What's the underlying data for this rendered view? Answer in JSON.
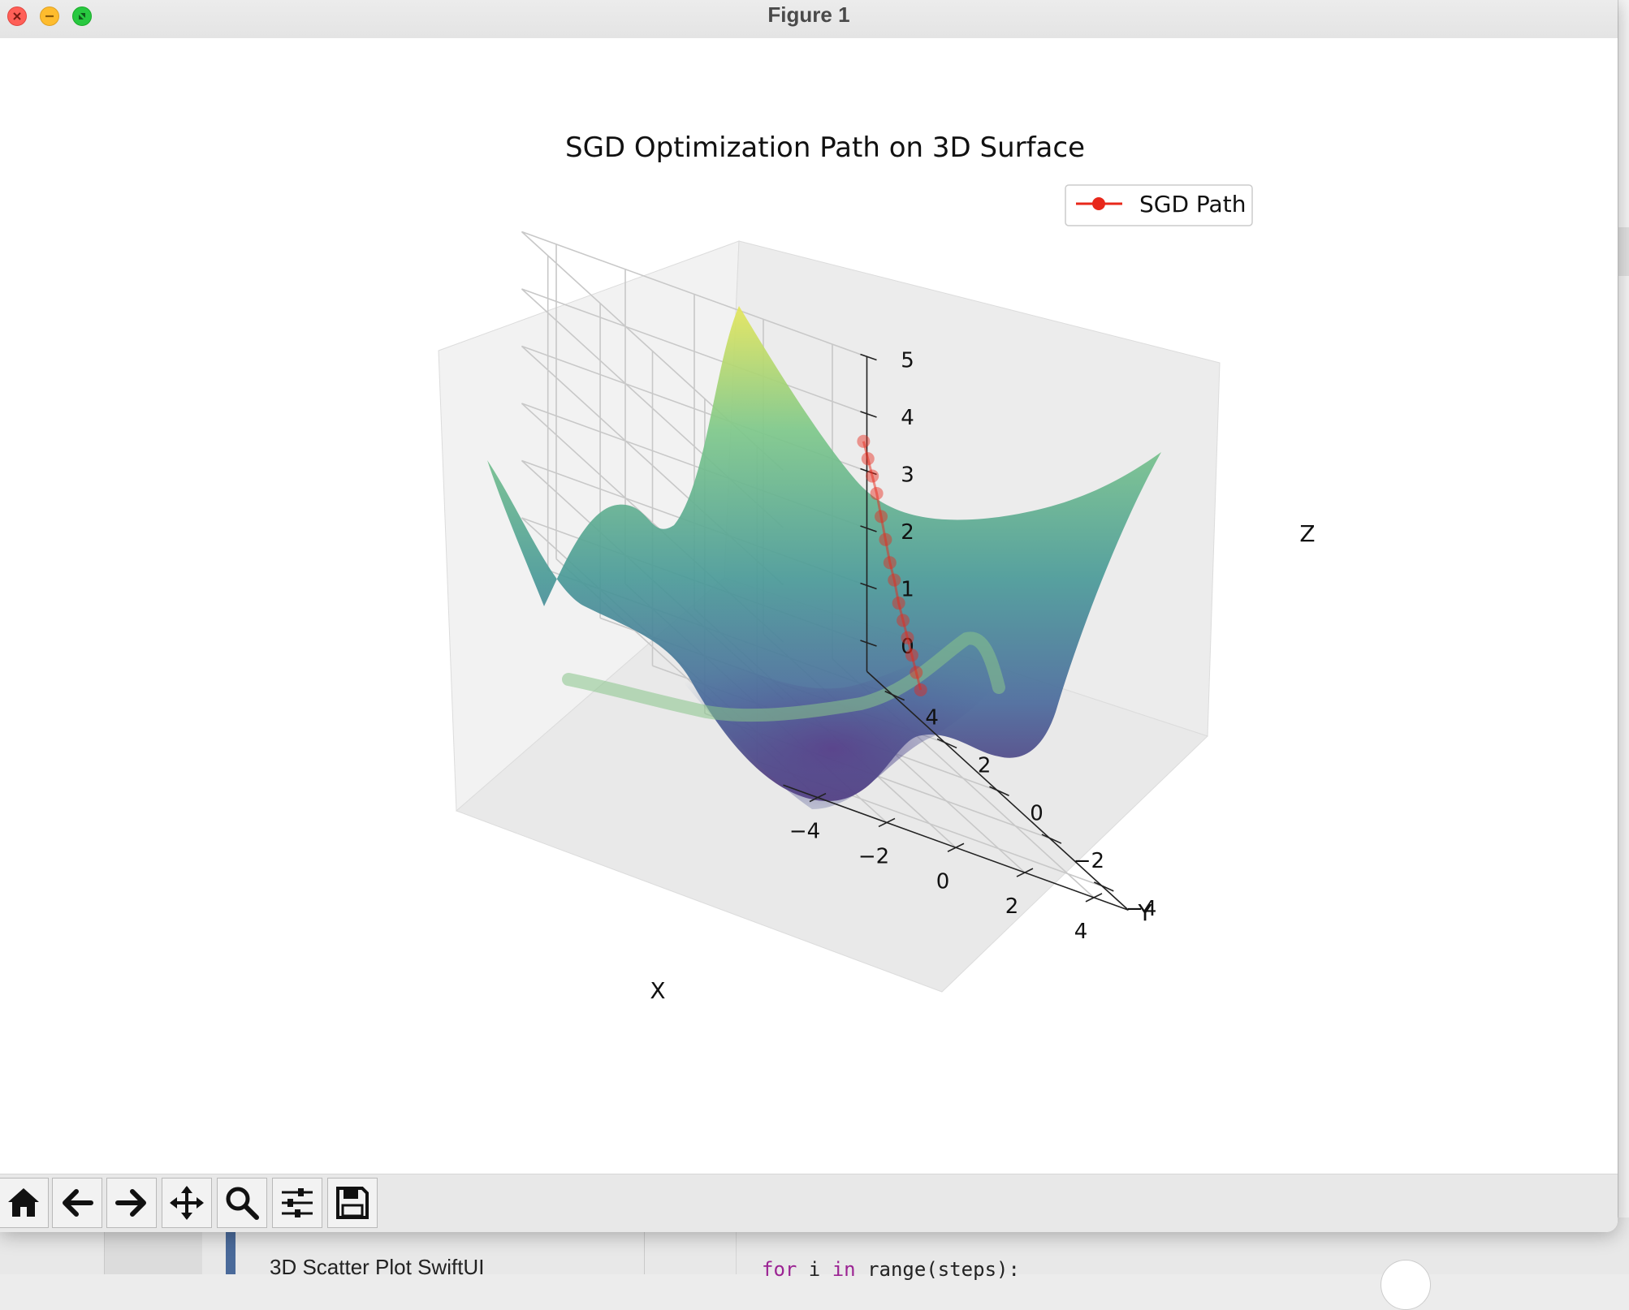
{
  "window": {
    "title": "Figure 1"
  },
  "toolbar": {
    "buttons": [
      {
        "name": "home-icon"
      },
      {
        "name": "back-arrow-icon"
      },
      {
        "name": "forward-arrow-icon"
      },
      {
        "name": "pan-move-icon"
      },
      {
        "name": "zoom-magnifier-icon"
      },
      {
        "name": "configure-subplots-icon"
      },
      {
        "name": "save-floppy-icon"
      }
    ]
  },
  "background": {
    "sidebar_item": "3D Scatter Plot SwiftUI",
    "code_kw1": "for",
    "code_var": " i ",
    "code_kw2": "in",
    "code_rest": " range(steps):"
  },
  "colors": {
    "path": "#e8271a",
    "colormap": "viridis"
  },
  "chart_data": {
    "type": "surface3d",
    "title": "SGD Optimization Path on 3D Surface",
    "xlabel": "X",
    "ylabel": "Y",
    "zlabel": "Z",
    "xticks": [
      "−4",
      "−2",
      "0",
      "2",
      "4"
    ],
    "yticks": [
      "−4",
      "−2",
      "0",
      "2",
      "4"
    ],
    "zticks": [
      "0",
      "1",
      "2",
      "3",
      "4",
      "5"
    ],
    "xlim": [
      -5,
      5
    ],
    "ylim": [
      -5,
      5
    ],
    "zlim": [
      -0.5,
      5
    ],
    "legend": {
      "position": "top-right",
      "entries": [
        "SGD Path"
      ]
    },
    "series": [
      {
        "name": "SGD Path",
        "x": [
          4.6,
          4.5,
          4.4,
          4.3,
          4.2,
          4.1,
          4.0,
          3.9,
          3.8,
          3.7,
          3.6,
          3.5,
          3.4,
          3.3
        ],
        "y": [
          4.6,
          4.3,
          4.0,
          3.7,
          3.4,
          3.1,
          2.8,
          2.5,
          2.2,
          1.9,
          1.6,
          1.3,
          1.0,
          0.7
        ],
        "z": [
          3.6,
          3.4,
          3.2,
          3.0,
          2.7,
          2.4,
          2.1,
          1.9,
          1.6,
          1.4,
          1.2,
          1.0,
          0.8,
          0.6
        ]
      }
    ]
  }
}
